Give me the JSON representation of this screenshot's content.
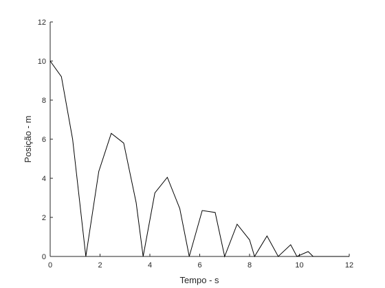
{
  "chart_data": {
    "type": "line",
    "title": "",
    "xlabel": "Tempo - s",
    "ylabel": "Posição - m",
    "xlim": [
      0,
      12
    ],
    "ylim": [
      0,
      12
    ],
    "xticks": [
      0,
      2,
      4,
      6,
      8,
      10,
      12
    ],
    "yticks": [
      0,
      2,
      4,
      6,
      8,
      10,
      12
    ],
    "grid": false,
    "legend": "none",
    "line_color": "#000000",
    "series": [
      {
        "x": [
          0,
          0.45,
          0.9,
          1.43,
          1.95,
          2.45,
          2.95,
          3.45,
          3.73,
          4.2,
          4.7,
          5.2,
          5.58,
          6.1,
          6.62,
          7.0,
          7.5,
          8.0,
          8.2,
          8.7,
          9.15,
          9.65,
          9.9,
          10.35,
          10.55,
          12.0
        ],
        "y": [
          10.0,
          9.2,
          6.0,
          0.0,
          4.35,
          6.3,
          5.8,
          2.75,
          0.0,
          3.25,
          4.05,
          2.45,
          0.0,
          2.35,
          2.25,
          0.0,
          1.65,
          0.85,
          0.0,
          1.05,
          0.0,
          0.6,
          0.0,
          0.25,
          0.0,
          0.0
        ]
      }
    ]
  }
}
